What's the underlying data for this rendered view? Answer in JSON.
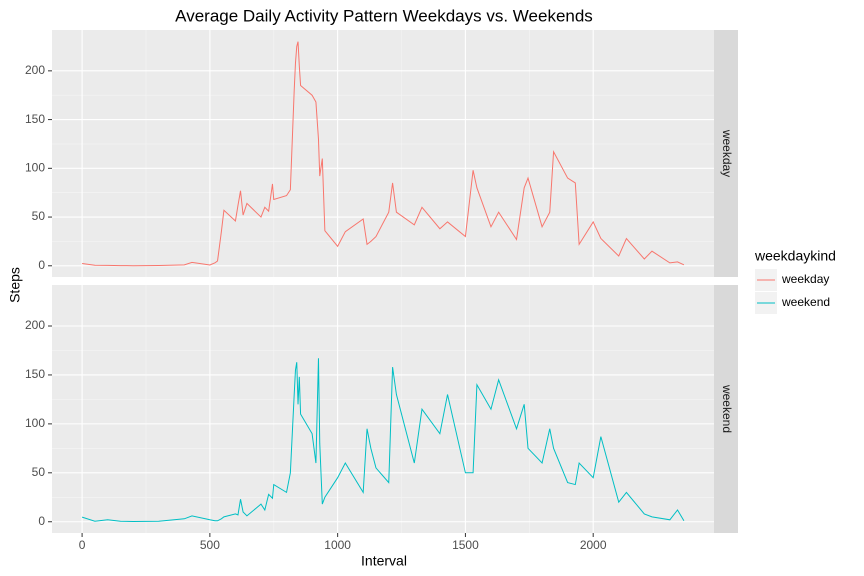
{
  "chart_data": {
    "type": "line",
    "title": "Average Daily Activity Pattern Weekdays vs. Weekends",
    "x_label": "Interval",
    "y_label": "Steps",
    "legend_title": "weekdaykind",
    "x": [
      0,
      50,
      100,
      150,
      200,
      300,
      400,
      430,
      500,
      520,
      530,
      545,
      555,
      600,
      610,
      620,
      630,
      645,
      700,
      715,
      730,
      745,
      750,
      800,
      815,
      830,
      835,
      840,
      845,
      850,
      855,
      900,
      915,
      925,
      930,
      940,
      950,
      1000,
      1030,
      1100,
      1115,
      1130,
      1150,
      1200,
      1215,
      1230,
      1300,
      1330,
      1400,
      1430,
      1500,
      1530,
      1545,
      1600,
      1630,
      1700,
      1730,
      1745,
      1800,
      1830,
      1845,
      1900,
      1930,
      1945,
      2000,
      2030,
      2100,
      2130,
      2200,
      2230,
      2300,
      2330,
      2355
    ],
    "series": [
      {
        "name": "weekday",
        "color": "#f8766d",
        "values": [
          2.3,
          0.5,
          0.4,
          0.2,
          0.1,
          0.3,
          1.0,
          3.5,
          0.8,
          3,
          5,
          35,
          57,
          46,
          62,
          77,
          52,
          64,
          50,
          60,
          56,
          84,
          68,
          72,
          78,
          180,
          208,
          225,
          230,
          205,
          185,
          175,
          168,
          130,
          92,
          110,
          36,
          20,
          35,
          48,
          22,
          25,
          30,
          55,
          85,
          55,
          42,
          60,
          38,
          45,
          30,
          98,
          80,
          40,
          55,
          27,
          80,
          90,
          40,
          55,
          117,
          90,
          85,
          22,
          45,
          28,
          10,
          28,
          7,
          15,
          3,
          4,
          1
        ]
      },
      {
        "name": "weekend",
        "color": "#00bfc4",
        "values": [
          4.7,
          0.5,
          2,
          0.5,
          0.3,
          0.5,
          3,
          6,
          2,
          1,
          1,
          3,
          5,
          8,
          7,
          23,
          10,
          6,
          18,
          12,
          28,
          24,
          38,
          30,
          50,
          130,
          155,
          163,
          120,
          148,
          110,
          90,
          60,
          167,
          80,
          18,
          25,
          45,
          60,
          30,
          95,
          75,
          55,
          40,
          158,
          130,
          60,
          115,
          90,
          130,
          50,
          50,
          140,
          115,
          145,
          95,
          120,
          75,
          60,
          95,
          75,
          40,
          38,
          60,
          45,
          87,
          20,
          30,
          8,
          5,
          2,
          12,
          1
        ]
      }
    ],
    "xlim": [
      -117.75,
      2472.75
    ],
    "xticks": [
      0,
      500,
      1000,
      1500,
      2000
    ],
    "ylim": [
      -11.5,
      241.9
    ],
    "yticks": [
      0,
      50,
      100,
      150,
      200
    ],
    "grid": true,
    "minor_grid": true,
    "facet": "series",
    "legend_position": "right"
  }
}
